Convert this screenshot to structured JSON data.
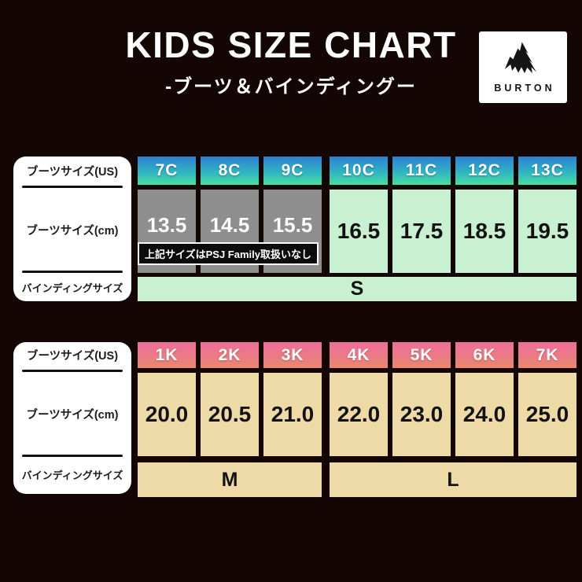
{
  "header": {
    "title": "KIDS SIZE CHART",
    "subtitle": "-ブーツ＆バインディングー",
    "brand": "BURTON"
  },
  "row_labels": {
    "us": "ブーツサイズ(US)",
    "cm": "ブーツサイズ(cm)",
    "binding": "バインディングサイズ"
  },
  "table1": {
    "us_sizes": [
      "7C",
      "8C",
      "9C",
      "10C",
      "11C",
      "12C",
      "13C"
    ],
    "cm_sizes": [
      "13.5",
      "14.5",
      "15.5",
      "16.5",
      "17.5",
      "18.5",
      "19.5"
    ],
    "gray_columns": [
      "7C",
      "8C",
      "9C"
    ],
    "note": "上記サイズはPSJ Family取扱いなし",
    "binding_size": "S"
  },
  "table2": {
    "us_sizes": [
      "1K",
      "2K",
      "3K",
      "4K",
      "5K",
      "6K",
      "7K"
    ],
    "cm_sizes": [
      "20.0",
      "20.5",
      "21.0",
      "22.0",
      "23.0",
      "24.0",
      "25.0"
    ],
    "bindings": [
      {
        "label": "M",
        "span": 3
      },
      {
        "label": "L",
        "span": 4
      }
    ]
  },
  "colors": {
    "background": "#140604",
    "table1_header_gradient_top": "#2e7fd2",
    "table1_header_gradient_bottom": "#49df9e",
    "table1_cm_gray": "#8e8e8e",
    "table1_cm_green": "#c9f1d1",
    "table2_header_gradient_top": "#ee6d9c",
    "table2_header_gradient_bottom": "#e8876f",
    "table2_cm_tan": "#eedaa6",
    "note_background": "#0c0c0c",
    "label_box": "#ffffff",
    "text_light": "#ffffff",
    "text_dark": "#121212"
  },
  "chart_data": [
    {
      "type": "table",
      "title": "KIDS SIZE CHART -ブーツ＆バインディングー (C sizes)",
      "row_headers": [
        "ブーツサイズ(US)",
        "ブーツサイズ(cm)",
        "バインディングサイズ"
      ],
      "columns": [
        "7C",
        "8C",
        "9C",
        "10C",
        "11C",
        "12C",
        "13C"
      ],
      "boot_cm": [
        13.5,
        14.5,
        15.5,
        16.5,
        17.5,
        18.5,
        19.5
      ],
      "binding_size": "S",
      "note": "上記サイズはPSJ Family取扱いなし",
      "note_columns": [
        "7C",
        "8C",
        "9C"
      ]
    },
    {
      "type": "table",
      "title": "KIDS SIZE CHART -ブーツ＆バインディングー (K sizes)",
      "row_headers": [
        "ブーツサイズ(US)",
        "ブーツサイズ(cm)",
        "バインディングサイズ"
      ],
      "columns": [
        "1K",
        "2K",
        "3K",
        "4K",
        "5K",
        "6K",
        "7K"
      ],
      "boot_cm": [
        20.0,
        20.5,
        21.0,
        22.0,
        23.0,
        24.0,
        25.0
      ],
      "binding_size": {
        "M": [
          "1K",
          "2K",
          "3K"
        ],
        "L": [
          "4K",
          "5K",
          "6K",
          "7K"
        ]
      }
    }
  ]
}
